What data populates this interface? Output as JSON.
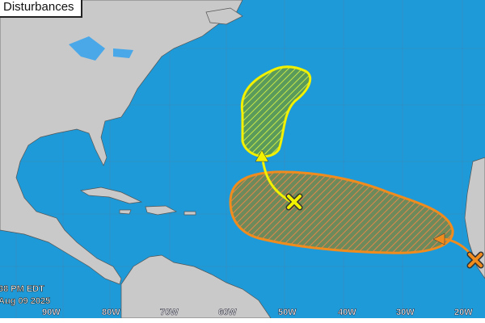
{
  "title": "Disturbances",
  "timestamp": {
    "time": "38 PM EDT",
    "date": "Aug 09 2025"
  },
  "longitude_labels": [
    "90W",
    "80W",
    "70W",
    "60W",
    "50W",
    "40W",
    "30W",
    "20W"
  ],
  "colors": {
    "ocean": "#1e9ad8",
    "land": "#c9c9c9",
    "low_chance": "#f0f000",
    "medium_chance": "#f08c1e"
  },
  "disturbances": [
    {
      "marker": "x-icon",
      "color": "#f0f000"
    },
    {
      "marker": "x-icon",
      "color": "#f08c1e"
    }
  ]
}
